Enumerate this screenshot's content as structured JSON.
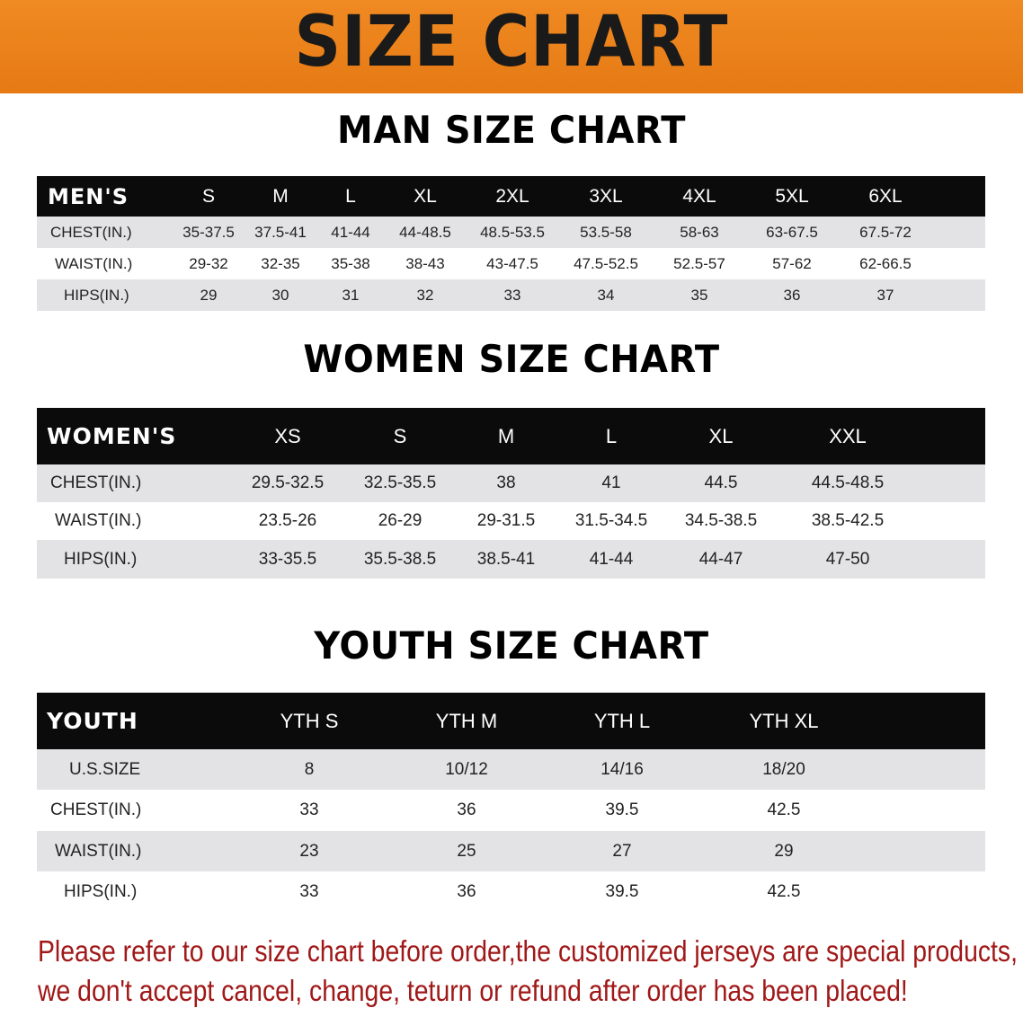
{
  "banner": {
    "title": "SIZE CHART",
    "color": "#e8801a"
  },
  "note": {
    "lines": [
      "Please refer to our size chart before order,the customized jerseys are special products,",
      "we don't accept cancel, change, teturn or refund after order has been placed!"
    ],
    "color": "#a01818"
  },
  "chart_data": [
    {
      "type": "table",
      "title": "MAN SIZE CHART",
      "header": [
        "MEN'S",
        "S",
        "M",
        "L",
        "XL",
        "2XL",
        "3XL",
        "4XL",
        "5XL",
        "6XL"
      ],
      "rows": [
        [
          "CHEST(IN.)",
          "35-37.5",
          "37.5-41",
          "41-44",
          "44-48.5",
          "48.5-53.5",
          "53.5-58",
          "58-63",
          "63-67.5",
          "67.5-72"
        ],
        [
          "WAIST(IN.)",
          "29-32",
          "32-35",
          "35-38",
          "38-43",
          "43-47.5",
          "47.5-52.5",
          "52.5-57",
          "57-62",
          "62-66.5"
        ],
        [
          "HIPS(IN.)",
          "29",
          "30",
          "31",
          "32",
          "33",
          "34",
          "35",
          "36",
          "37"
        ]
      ]
    },
    {
      "type": "table",
      "title": "WOMEN SIZE CHART",
      "header": [
        "WOMEN'S",
        "XS",
        "S",
        "M",
        "L",
        "XL",
        "XXL"
      ],
      "rows": [
        [
          "CHEST(IN.)",
          "29.5-32.5",
          "32.5-35.5",
          "38",
          "41",
          "44.5",
          "44.5-48.5"
        ],
        [
          "WAIST(IN.)",
          "23.5-26",
          "26-29",
          "29-31.5",
          "31.5-34.5",
          "34.5-38.5",
          "38.5-42.5"
        ],
        [
          "HIPS(IN.)",
          "33-35.5",
          "35.5-38.5",
          "38.5-41",
          "41-44",
          "44-47",
          "47-50"
        ]
      ]
    },
    {
      "type": "table",
      "title": "YOUTH SIZE CHART",
      "header": [
        "YOUTH",
        "YTH S",
        "YTH M",
        "YTH L",
        "YTH XL"
      ],
      "rows": [
        [
          "U.S.SIZE",
          "8",
          "10/12",
          "14/16",
          "18/20"
        ],
        [
          "CHEST(IN.)",
          "33",
          "36",
          "39.5",
          "42.5"
        ],
        [
          "WAIST(IN.)",
          "23",
          "25",
          "27",
          "29"
        ],
        [
          "HIPS(IN.)",
          "33",
          "36",
          "39.5",
          "42.5"
        ]
      ]
    }
  ]
}
